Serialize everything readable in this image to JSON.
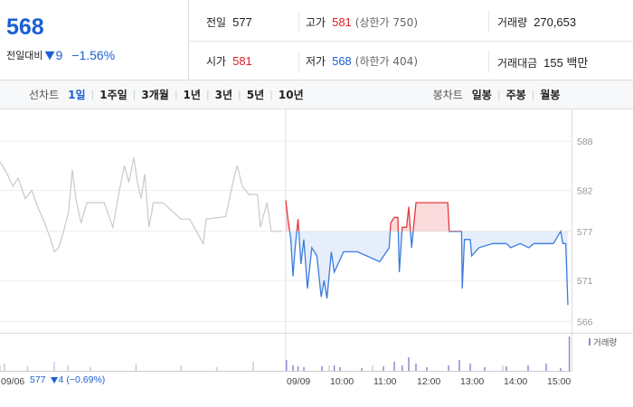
{
  "quote": {
    "price": 568,
    "change_label": "전일대비",
    "change": 9,
    "change_pct": "−1.56%"
  },
  "stats": [
    {
      "label": "전일",
      "value": "577"
    },
    {
      "label": "고가",
      "value": "581",
      "note": "(상한가 750)"
    },
    {
      "label": "거래량",
      "value": "270,653"
    },
    {
      "label": "시가",
      "value": "581"
    },
    {
      "label": "저가",
      "value": "568",
      "note": "(하한가 404)"
    },
    {
      "label": "거래대금",
      "value": "155 백만"
    }
  ],
  "tabs": {
    "line_label": "선차트",
    "line_periods": [
      "1일",
      "1주일",
      "3개월",
      "1년",
      "3년",
      "5년",
      "10년"
    ],
    "candle_label": "봉차트",
    "candle_periods": [
      "일봉",
      "주봉",
      "월봉"
    ]
  },
  "prev_day": {
    "close": 577,
    "change": 4,
    "change_pct": "(−0.69%)"
  },
  "chart_data": {
    "type": "line",
    "baseline": 577,
    "xlim": [
      0,
      790
    ],
    "ylim": [
      564.6,
      592
    ],
    "yticks": [
      566,
      571,
      577,
      582,
      588
    ],
    "xticks": [
      {
        "value": 0,
        "label": "09/06"
      },
      {
        "value": 395,
        "label": "09/09"
      },
      {
        "value": 455,
        "label": "10:00"
      },
      {
        "value": 515,
        "label": "11:00"
      },
      {
        "value": 575,
        "label": "12:00"
      },
      {
        "value": 635,
        "label": "13:00"
      },
      {
        "value": 695,
        "label": "14:00"
      },
      {
        "value": 755,
        "label": "15:00"
      }
    ],
    "grid": true,
    "series": [
      {
        "color": "#c9c9c9",
        "x": [
          0,
          10,
          18,
          25,
          35,
          44,
          52,
          62,
          70,
          75,
          81,
          88,
          95,
          100,
          105,
          112,
          120,
          131,
          144,
          156,
          165,
          172,
          178,
          185,
          190,
          195,
          200,
          206,
          212,
          225,
          250,
          262,
          281,
          285,
          312,
          322,
          328,
          335,
          344,
          356,
          360,
          369,
          375,
          390
        ],
        "values": [
          585.5,
          584,
          582.5,
          583.5,
          581,
          582,
          580,
          578,
          576,
          574.5,
          575,
          577,
          579.5,
          584.5,
          581,
          578,
          580.5,
          580.5,
          580.5,
          577.5,
          582,
          585,
          583,
          586,
          583,
          581,
          584,
          577.5,
          580.5,
          580.5,
          578.5,
          578.5,
          575.5,
          578.5,
          578.8,
          583,
          585,
          582.5,
          581.5,
          581.5,
          577.5,
          580.5,
          577,
          577
        ]
      },
      {
        "up_color": "#e8373b",
        "down_color": "#3a7be0",
        "x": [
          395,
          398,
          402,
          405,
          408,
          412,
          416,
          420,
          425,
          431,
          438,
          444,
          448,
          452,
          458,
          462,
          475,
          494,
          525,
          538,
          540,
          545,
          550,
          552,
          556,
          562,
          565,
          569,
          575,
          588,
          606,
          619,
          621,
          638,
          639,
          642,
          650,
          652,
          662,
          681,
          700,
          706,
          719,
          731,
          738,
          750,
          765,
          775,
          778,
          782,
          785
        ],
        "values": [
          580.8,
          578.5,
          576,
          571.5,
          575,
          578.5,
          573,
          576,
          570,
          575,
          574,
          569,
          571,
          568.8,
          574.5,
          572,
          574.5,
          574.5,
          573.3,
          575,
          578,
          578.7,
          578.7,
          572,
          577.5,
          577.5,
          580,
          575,
          580.5,
          580.5,
          580.5,
          580.5,
          577,
          577,
          570,
          576,
          576,
          574,
          575,
          575.5,
          575.5,
          575,
          575.5,
          575,
          575.5,
          575.5,
          575.5,
          577,
          575.5,
          575.5,
          568
        ]
      }
    ],
    "volume": {
      "name": "거래량",
      "color": "#9b86cc",
      "prev_color": "#cfc6e6",
      "ylim": [
        0,
        40000
      ],
      "x": [
        6,
        38,
        75,
        94,
        125,
        188,
        250,
        300,
        350,
        412,
        462,
        396,
        405,
        420,
        445,
        470,
        500,
        530,
        545,
        556,
        565,
        575,
        590,
        620,
        635,
        650,
        670,
        700,
        730,
        755,
        775,
        787
      ],
      "values": [
        8000,
        5000,
        10000,
        6000,
        4000,
        8000,
        6000,
        4000,
        10000,
        5000,
        6000,
        12000,
        6000,
        4000,
        5000,
        4000,
        3000,
        5000,
        10000,
        6000,
        15000,
        8000,
        4000,
        6000,
        12000,
        8000,
        4000,
        5000,
        6000,
        8000,
        3000,
        38000
      ]
    }
  }
}
